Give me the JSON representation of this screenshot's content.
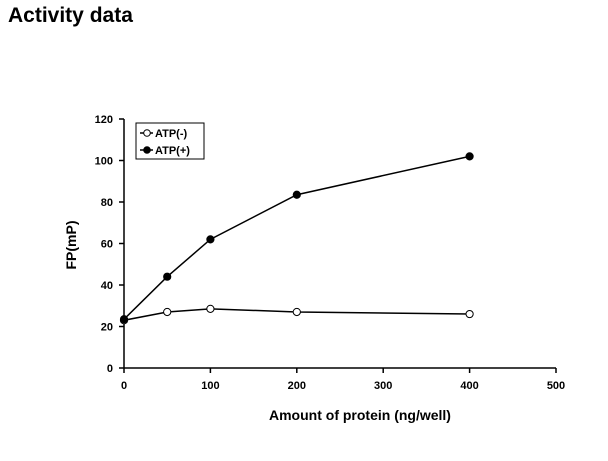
{
  "page": {
    "title": "Activity data"
  },
  "chart_data": {
    "type": "line",
    "title": "",
    "xlabel": "Amount of protein (ng/well)",
    "ylabel": "FP(mP)",
    "xlim": [
      0,
      500
    ],
    "ylim": [
      0,
      120
    ],
    "x_ticks": [
      0,
      100,
      200,
      300,
      400,
      500
    ],
    "y_ticks": [
      0,
      20,
      40,
      60,
      80,
      100,
      120
    ],
    "grid": false,
    "legend_position": "top-left",
    "x": [
      0,
      50,
      100,
      200,
      400
    ],
    "series": [
      {
        "name": "ATP(-)",
        "marker": "open-circle",
        "color": "#000000",
        "values": [
          23,
          27,
          28.5,
          27,
          26
        ]
      },
      {
        "name": "ATP(+)",
        "marker": "filled-circle",
        "color": "#000000",
        "values": [
          23.5,
          44,
          62,
          83.5,
          102
        ]
      }
    ]
  }
}
